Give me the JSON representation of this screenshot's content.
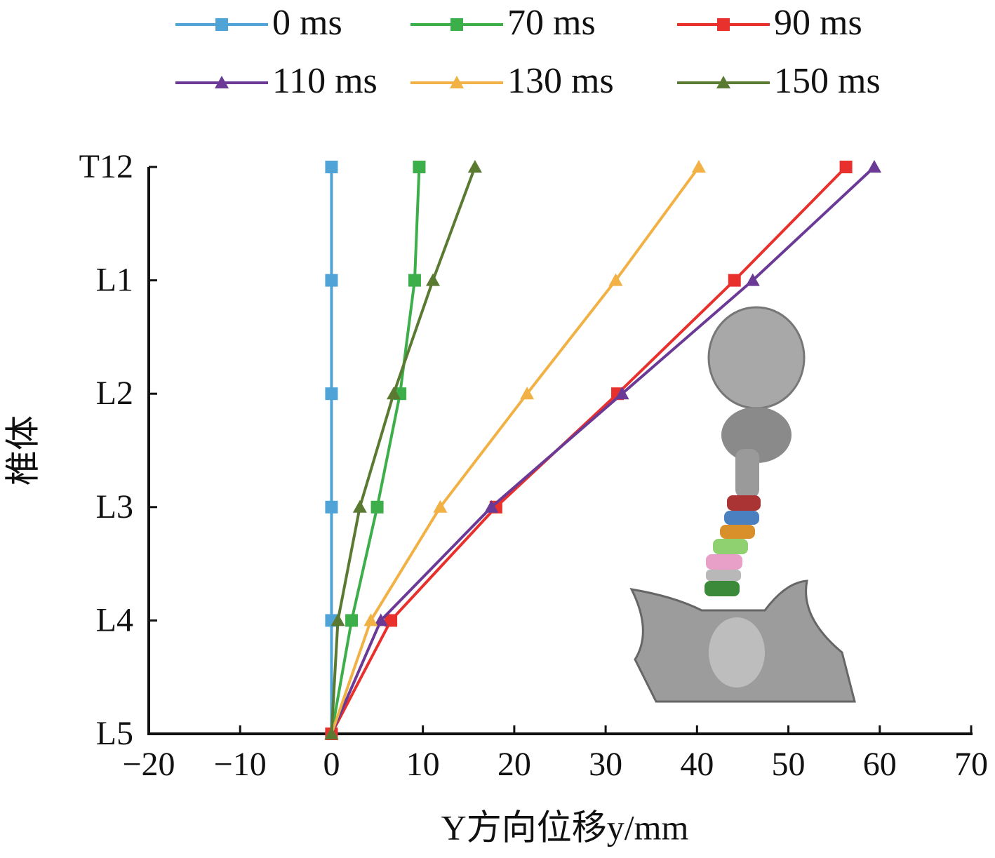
{
  "chart_data": {
    "type": "line",
    "x_label": "Y方向位移y/mm",
    "y_label": "椎体",
    "categories": [
      "T12",
      "L1",
      "L2",
      "L3",
      "L4",
      "L5"
    ],
    "series": [
      {
        "name": "0 ms",
        "color": "#4fa3d6",
        "marker": "square",
        "values": [
          0,
          0,
          0,
          0,
          0,
          0
        ]
      },
      {
        "name": "70 ms",
        "color": "#3cae4a",
        "marker": "square",
        "values": [
          9.6,
          9.1,
          7.5,
          5.0,
          2.2,
          0
        ]
      },
      {
        "name": "90 ms",
        "color": "#e8312c",
        "marker": "square",
        "values": [
          56.3,
          44.1,
          31.3,
          18.0,
          6.5,
          0
        ]
      },
      {
        "name": "110 ms",
        "color": "#6a3a96",
        "marker": "triangle",
        "values": [
          59.4,
          46.1,
          31.8,
          17.5,
          5.4,
          0
        ]
      },
      {
        "name": "130 ms",
        "color": "#f2b144",
        "marker": "triangle",
        "values": [
          40.2,
          31.1,
          21.4,
          11.9,
          4.3,
          0
        ]
      },
      {
        "name": "150 ms",
        "color": "#5a7a32",
        "marker": "triangle",
        "values": [
          15.7,
          11.1,
          6.8,
          3.1,
          0.7,
          0
        ]
      }
    ],
    "xlim": [
      -20,
      70
    ],
    "xticks": [
      {
        "value": -20,
        "label": "−20"
      },
      {
        "value": -10,
        "label": "−10"
      },
      0,
      10,
      20,
      30,
      40,
      50,
      60,
      70
    ]
  }
}
